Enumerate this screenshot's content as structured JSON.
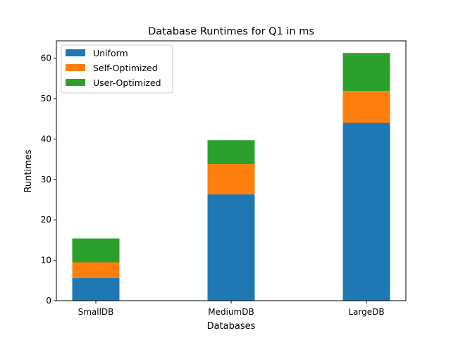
{
  "chart_data": {
    "type": "bar",
    "stacked": true,
    "title": "Database Runtimes for Q1 in ms",
    "xlabel": "Databases",
    "ylabel": "Runtimes",
    "categories": [
      "SmallDB",
      "MediumDB",
      "LargeDB"
    ],
    "series": [
      {
        "name": "Uniform",
        "color": "#1f77b4",
        "values": [
          5.6,
          26.3,
          44.0
        ]
      },
      {
        "name": "Self-Optimized",
        "color": "#ff7f0e",
        "values": [
          3.9,
          7.5,
          7.9
        ]
      },
      {
        "name": "User-Optimized",
        "color": "#2ca02c",
        "values": [
          5.9,
          5.9,
          9.4
        ]
      }
    ],
    "ylim": [
      0,
      64.3
    ],
    "yticks": [
      0,
      10,
      20,
      30,
      40,
      50,
      60
    ],
    "legend_position": "top-left",
    "grid": false
  }
}
